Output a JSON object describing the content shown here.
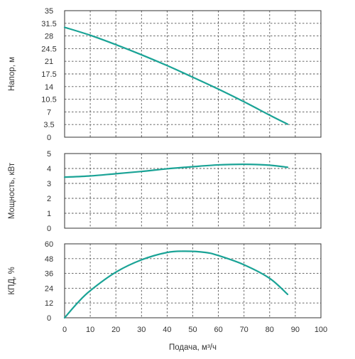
{
  "chart_data": [
    {
      "type": "line",
      "ylabel": "Напор, м",
      "xlabel": "",
      "xlim": [
        0,
        100
      ],
      "ylim": [
        0,
        35
      ],
      "xticks": [
        "0",
        "10",
        "20",
        "30",
        "40",
        "50",
        "60",
        "70",
        "80",
        "90",
        "100"
      ],
      "yticks": [
        "0",
        "3.5",
        "7",
        "10.5",
        "14",
        "17.5",
        "21",
        "24.5",
        "28",
        "31.5",
        "35"
      ],
      "grid": true,
      "series": [
        {
          "color": "#1aa396",
          "x": [
            0,
            10,
            20,
            30,
            40,
            50,
            60,
            70,
            80,
            87
          ],
          "y": [
            30.4,
            28.2,
            25.6,
            22.8,
            19.8,
            16.6,
            13.3,
            9.8,
            6.1,
            3.6
          ]
        }
      ]
    },
    {
      "type": "line",
      "ylabel": "Мощность, кВт",
      "xlabel": "",
      "xlim": [
        0,
        100
      ],
      "ylim": [
        0,
        5
      ],
      "xticks": [
        "0",
        "10",
        "20",
        "30",
        "40",
        "50",
        "60",
        "70",
        "80",
        "90",
        "100"
      ],
      "yticks": [
        "0",
        "1",
        "2",
        "3",
        "4",
        "5"
      ],
      "grid": true,
      "series": [
        {
          "color": "#1aa396",
          "x": [
            0,
            10,
            20,
            30,
            40,
            50,
            60,
            70,
            80,
            87
          ],
          "y": [
            3.42,
            3.5,
            3.65,
            3.8,
            3.98,
            4.12,
            4.24,
            4.28,
            4.22,
            4.08
          ]
        }
      ]
    },
    {
      "type": "line",
      "ylabel": "КПД, %",
      "xlabel": "Подача, м³/ч",
      "xlim": [
        0,
        100
      ],
      "ylim": [
        0,
        60
      ],
      "xticks": [
        "0",
        "10",
        "20",
        "30",
        "40",
        "50",
        "60",
        "70",
        "80",
        "90",
        "100"
      ],
      "yticks": [
        "0",
        "12",
        "24",
        "36",
        "48",
        "60"
      ],
      "grid": true,
      "series": [
        {
          "color": "#1aa396",
          "x": [
            0,
            5,
            10,
            20,
            30,
            40,
            47,
            55,
            60,
            70,
            80,
            87
          ],
          "y": [
            0,
            12,
            22,
            37,
            47,
            53,
            54,
            53,
            50.5,
            43,
            32,
            19
          ]
        }
      ]
    }
  ]
}
